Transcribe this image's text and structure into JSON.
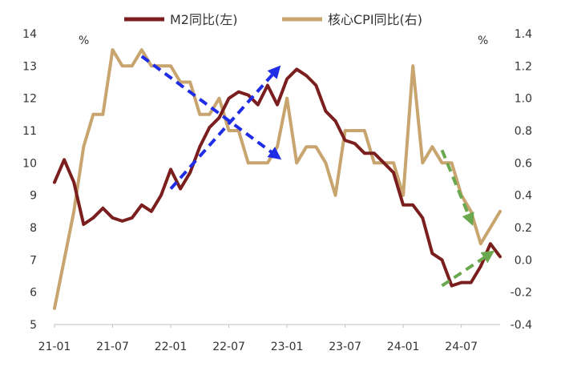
{
  "chart_data": {
    "type": "line",
    "title": "",
    "left_unit": "%",
    "right_unit": "%",
    "legend_position": "top-center",
    "x_tick_labels": [
      "21-01",
      "21-07",
      "22-01",
      "22-07",
      "23-01",
      "23-07",
      "24-01",
      "24-07"
    ],
    "y_left": {
      "ticks": [
        "5",
        "6",
        "7",
        "8",
        "9",
        "10",
        "11",
        "12",
        "13",
        "14"
      ],
      "lim": [
        5,
        14
      ]
    },
    "y_right": {
      "ticks": [
        "-0.4",
        "-0.2",
        "0.0",
        "0.2",
        "0.4",
        "0.6",
        "0.8",
        "1.0",
        "1.2",
        "1.4"
      ],
      "lim": [
        -0.4,
        1.4
      ]
    },
    "x": [
      "2021-01",
      "2021-02",
      "2021-03",
      "2021-04",
      "2021-05",
      "2021-06",
      "2021-07",
      "2021-08",
      "2021-09",
      "2021-10",
      "2021-11",
      "2021-12",
      "2022-01",
      "2022-02",
      "2022-03",
      "2022-04",
      "2022-05",
      "2022-06",
      "2022-07",
      "2022-08",
      "2022-09",
      "2022-10",
      "2022-11",
      "2022-12",
      "2023-01",
      "2023-02",
      "2023-03",
      "2023-04",
      "2023-05",
      "2023-06",
      "2023-07",
      "2023-08",
      "2023-09",
      "2023-10",
      "2023-11",
      "2023-12",
      "2024-01",
      "2024-02",
      "2024-03",
      "2024-04",
      "2024-05",
      "2024-06",
      "2024-07",
      "2024-08",
      "2024-09",
      "2024-10",
      "2024-11"
    ],
    "series": [
      {
        "name": "M2同比(左)",
        "axis": "left",
        "color": "#7b1e1e",
        "values": [
          9.4,
          10.1,
          9.4,
          8.1,
          8.3,
          8.6,
          8.3,
          8.2,
          8.3,
          8.7,
          8.5,
          9.0,
          9.8,
          9.2,
          9.7,
          10.5,
          11.1,
          11.4,
          12.0,
          12.2,
          12.1,
          11.8,
          12.4,
          11.8,
          12.6,
          12.9,
          12.7,
          12.4,
          11.6,
          11.3,
          10.7,
          10.6,
          10.3,
          10.3,
          10.0,
          9.7,
          8.7,
          8.7,
          8.3,
          7.2,
          7.0,
          6.2,
          6.3,
          6.3,
          6.8,
          7.5,
          7.1
        ]
      },
      {
        "name": "核心CPI同比(右)",
        "axis": "right",
        "color": "#c8a46e",
        "values": [
          -0.3,
          0.0,
          0.3,
          0.7,
          0.9,
          0.9,
          1.3,
          1.2,
          1.2,
          1.3,
          1.2,
          1.2,
          1.2,
          1.1,
          1.1,
          0.9,
          0.9,
          1.0,
          0.8,
          0.8,
          0.6,
          0.6,
          0.6,
          0.7,
          1.0,
          0.6,
          0.7,
          0.7,
          0.6,
          0.4,
          0.8,
          0.8,
          0.8,
          0.6,
          0.6,
          0.6,
          0.4,
          1.2,
          0.6,
          0.7,
          0.6,
          0.6,
          0.4,
          0.3,
          0.1,
          0.2,
          0.3
        ]
      }
    ],
    "annotations": [
      {
        "type": "dashed-arrow",
        "color": "#1f2de6",
        "from": {
          "x": "2021-10",
          "y_left": 13.3
        },
        "to": {
          "x": "2022-12",
          "y_left": 10.2
        }
      },
      {
        "type": "dashed-arrow",
        "color": "#1f2de6",
        "from": {
          "x": "2022-01",
          "y_left": 9.2
        },
        "to": {
          "x": "2022-12",
          "y_left": 12.9
        }
      },
      {
        "type": "dashed-arrow",
        "color": "#6aa84f",
        "from": {
          "x": "2024-05",
          "y_left": 10.4
        },
        "to": {
          "x": "2024-08",
          "y_left": 8.2
        }
      },
      {
        "type": "dashed-arrow",
        "color": "#6aa84f",
        "from": {
          "x": "2024-05",
          "y_left": 6.2
        },
        "to": {
          "x": "2024-10",
          "y_left": 7.2
        }
      }
    ]
  }
}
